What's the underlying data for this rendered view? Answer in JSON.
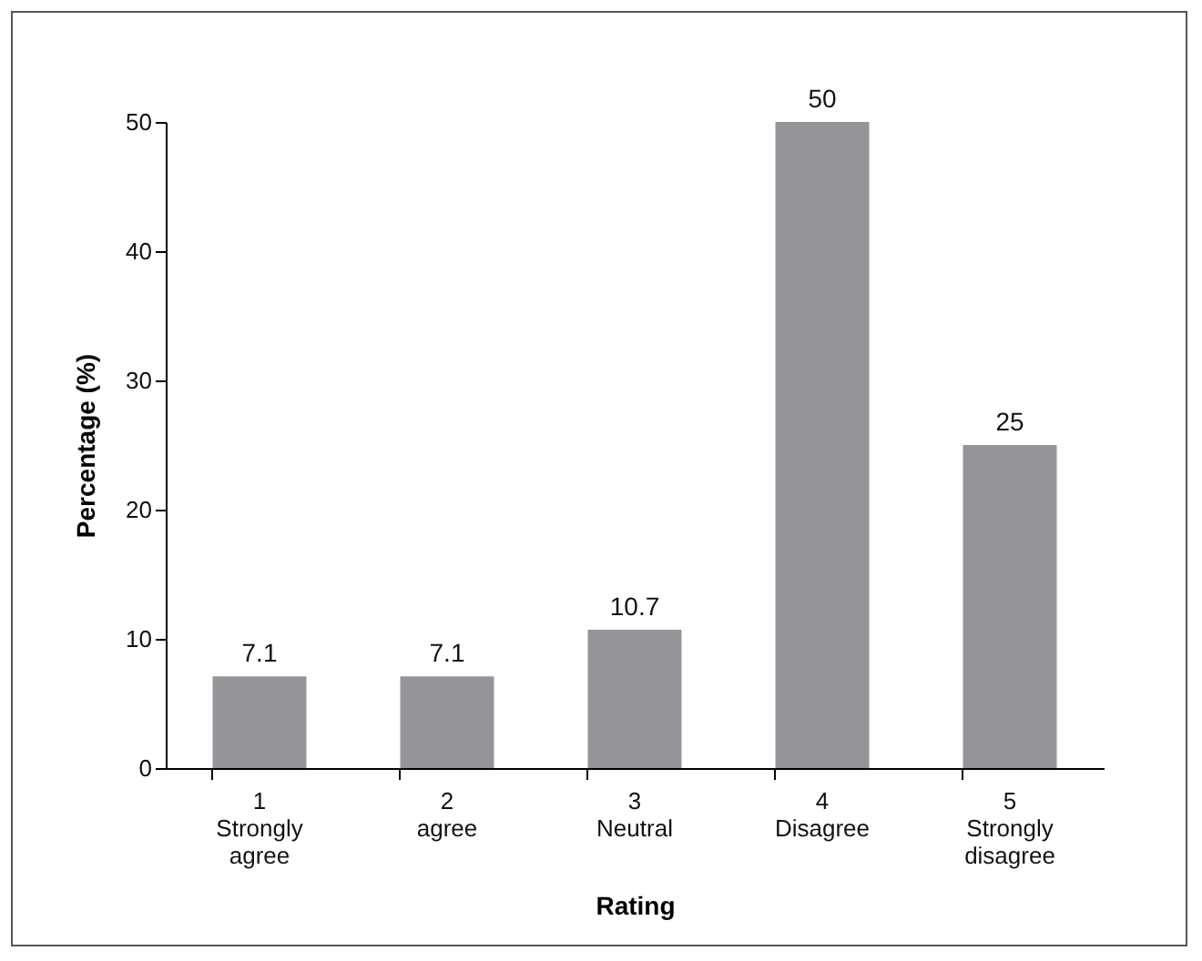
{
  "chart_data": {
    "type": "bar",
    "xlabel": "Rating",
    "ylabel": "Percentage (%)",
    "categories": [
      "1\nStrongly\nagree",
      "2\nagree",
      "3\nNeutral",
      "4\nDisagree",
      "5\nStrongly\ndisagree"
    ],
    "values": [
      7.1,
      7.1,
      10.7,
      50,
      25
    ],
    "color": "#939598",
    "ylim": [
      0,
      50
    ],
    "yticks": [
      0,
      10,
      20,
      30,
      40,
      50
    ],
    "grid": false,
    "data_labels": true
  }
}
